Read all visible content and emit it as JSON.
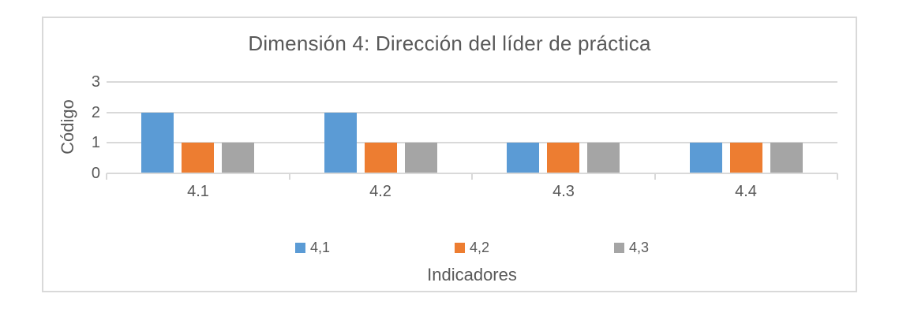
{
  "chart_data": {
    "type": "bar",
    "title": "Dimensión 4: Dirección del líder de práctica",
    "xlabel": "Indicadores",
    "ylabel": "Código",
    "categories": [
      "4.1",
      "4.2",
      "4.3",
      "4.4"
    ],
    "series": [
      {
        "name": "4,1",
        "color": "#5B9BD5",
        "values": [
          2,
          2,
          1,
          1
        ]
      },
      {
        "name": "4,2",
        "color": "#ED7D31",
        "values": [
          1,
          1,
          1,
          1
        ]
      },
      {
        "name": "4,3",
        "color": "#A5A5A5",
        "values": [
          1,
          1,
          1,
          1
        ]
      }
    ],
    "ylim": [
      0,
      3
    ],
    "yticks": [
      0,
      1,
      2,
      3
    ],
    "grid": true,
    "legend_position": "bottom"
  },
  "style": {
    "text_color": "#595959",
    "grid_color": "#D9D9D9",
    "frame_color": "#D9D9D9",
    "background": "#ffffff"
  }
}
